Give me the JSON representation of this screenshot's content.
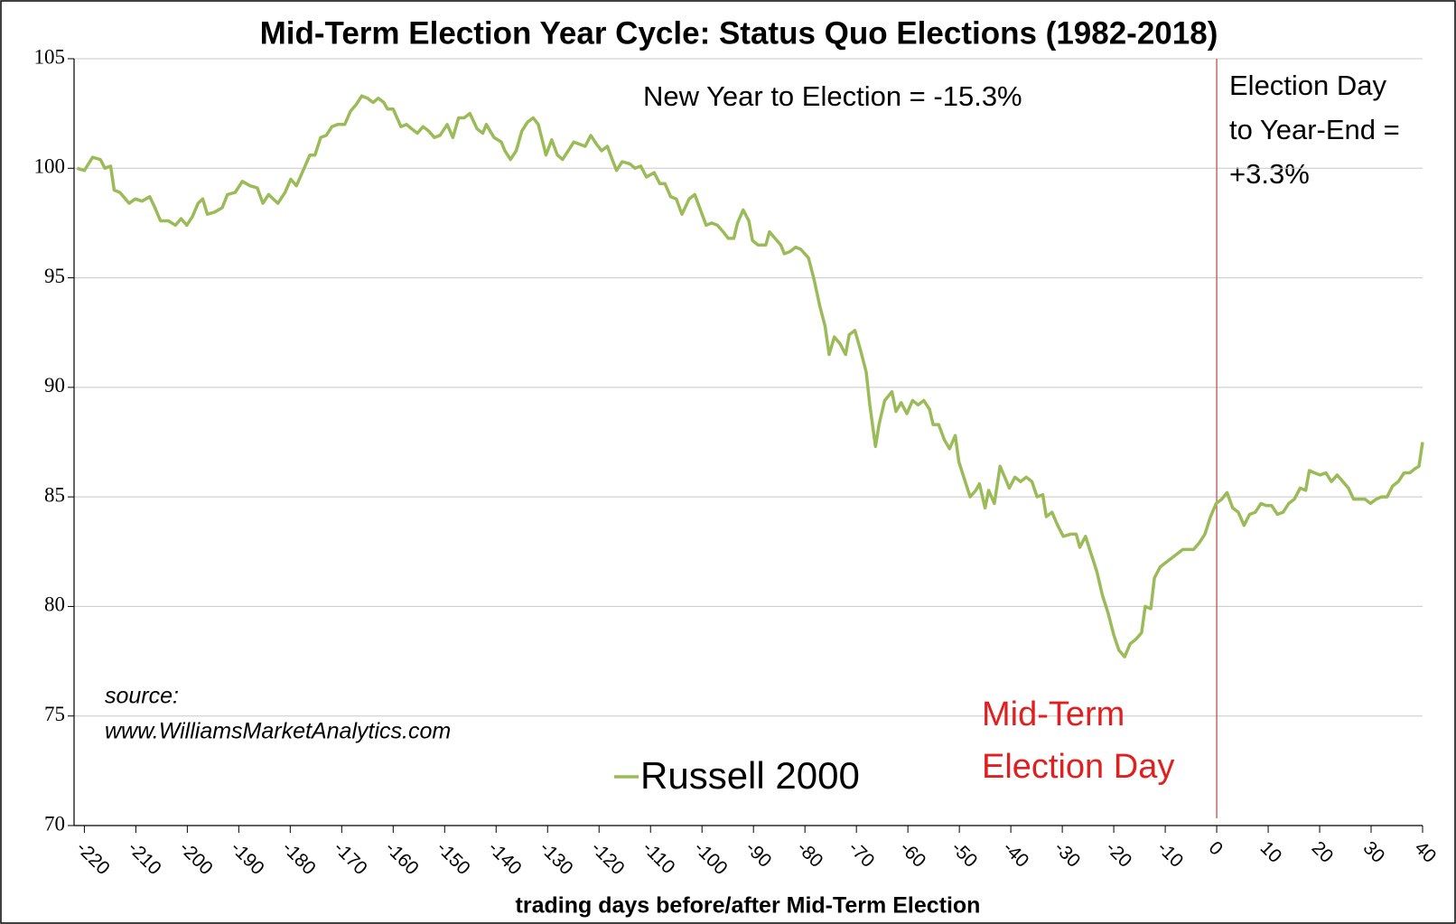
{
  "chart_data": {
    "type": "line",
    "title": "Mid-Term Election Year Cycle: Status Quo Elections (1982-2018)",
    "xlabel": "trading days before/after Mid-Term Election",
    "xlim": [
      -222,
      40
    ],
    "ylim": [
      70,
      105
    ],
    "xticks": [
      -220,
      -210,
      -200,
      -190,
      -180,
      -170,
      -160,
      -150,
      -140,
      -130,
      -120,
      -110,
      -100,
      -90,
      -80,
      -70,
      -60,
      -50,
      -40,
      -30,
      -20,
      -10,
      0,
      10,
      20,
      30,
      40
    ],
    "yticks": [
      70,
      75,
      80,
      85,
      90,
      95,
      100,
      105
    ],
    "grid": true,
    "reference_line": {
      "x": 0,
      "color": "#c0504d"
    },
    "annotations": {
      "new_year": "New Year to Election = -15.3%",
      "election_day": [
        "Election Day",
        "to Year-End =",
        "+3.3%"
      ],
      "source": [
        "source:",
        "www.WilliamsMarketAnalytics.com"
      ],
      "election_day_label": {
        "lines": [
          "Mid-Term",
          "Election Day"
        ],
        "color": "#e02020"
      }
    },
    "x": [
      -221.4,
      -220,
      -218.4,
      -216.9,
      -216.0,
      -214.9,
      -214.2,
      -213.1,
      -211.3,
      -210.1,
      -208.8,
      -207.3,
      -206.3,
      -205.2,
      -203.7,
      -202.3,
      -201.2,
      -200.1,
      -199.0,
      -197.9,
      -197.0,
      -196.1,
      -194.7,
      -193.2,
      -192.2,
      -190.7,
      -189.3,
      -187.8,
      -186.4,
      -185.3,
      -184.2,
      -182.4,
      -181.0,
      -179.9,
      -178.8,
      -177.3,
      -176.2,
      -175.2,
      -174.1,
      -173.0,
      -171.9,
      -170.8,
      -169.4,
      -168.3,
      -167.2,
      -166.1,
      -165.0,
      -163.9,
      -162.9,
      -161.8,
      -161.1,
      -160.0,
      -158.5,
      -157.4,
      -156.4,
      -155.3,
      -154.2,
      -153.1,
      -152.0,
      -150.9,
      -149.5,
      -148.4,
      -147.3,
      -146.2,
      -145.1,
      -143.7,
      -142.6,
      -141.9,
      -140.4,
      -139.0,
      -138.3,
      -137.2,
      -136.1,
      -135.0,
      -133.9,
      -132.8,
      -131.8,
      -130.3,
      -129.2,
      -128.1,
      -127.1,
      -126.0,
      -124.9,
      -123.8,
      -122.7,
      -121.6,
      -120.5,
      -119.5,
      -118.4,
      -117.6,
      -116.6,
      -115.5,
      -114.0,
      -113.0,
      -111.9,
      -110.8,
      -109.3,
      -108.2,
      -107.2,
      -106.1,
      -105.0,
      -103.9,
      -102.5,
      -101.4,
      -100.3,
      -99.2,
      -98.1,
      -97.0,
      -95.9,
      -94.9,
      -93.8,
      -93.1,
      -92.0,
      -90.9,
      -90.2,
      -89.1,
      -87.6,
      -86.9,
      -85.8,
      -84.7,
      -84.0,
      -82.9,
      -81.8,
      -80.8,
      -79.3,
      -78.2,
      -77.1,
      -76.1,
      -75.3,
      -74.3,
      -73.2,
      -72.1,
      -71.4,
      -70.3,
      -69.2,
      -68.1,
      -67.4,
      -66.3,
      -65.6,
      -64.5,
      -63.1,
      -62.3,
      -61.3,
      -60.2,
      -59.1,
      -58.0,
      -56.9,
      -55.8,
      -55.1,
      -54.0,
      -52.9,
      -51.9,
      -50.8,
      -50.1,
      -49.0,
      -47.9,
      -46.8,
      -46.1,
      -45.0,
      -44.3,
      -43.2,
      -42.1,
      -41.0,
      -40.3,
      -39.2,
      -38.1,
      -37.0,
      -35.9,
      -34.9,
      -33.8,
      -33.1,
      -32.0,
      -30.9,
      -29.8,
      -28.4,
      -27.3,
      -26.6,
      -25.5,
      -24.4,
      -23.3,
      -22.2,
      -21.1,
      -20.0,
      -19.0,
      -17.9,
      -16.8,
      -15.7,
      -14.6,
      -13.9,
      -12.8,
      -12.1,
      -11.0,
      -9.9,
      -8.8,
      -7.7,
      -6.6,
      -5.6,
      -4.5,
      -3.4,
      -2.3,
      -1.2,
      -0.1,
      1.0,
      2.0,
      3.1,
      4.2,
      5.3,
      6.4,
      7.5,
      8.6,
      9.6,
      10.7,
      11.8,
      12.9,
      14.0,
      15.1,
      16.2,
      17.3,
      18.0,
      19.0,
      20.1,
      21.2,
      22.3,
      23.4,
      24.5,
      25.6,
      26.6,
      27.7,
      28.8,
      29.9,
      31.0,
      32.0,
      33.1,
      34.2,
      35.3,
      36.4,
      37.5,
      38.6,
      39.3,
      40.0
    ],
    "series": [
      {
        "name": "Russell 2000",
        "color": "#9bbb59",
        "values": [
          100.0,
          99.9,
          100.5,
          100.4,
          100.0,
          100.1,
          99.0,
          98.9,
          98.4,
          98.6,
          98.5,
          98.7,
          98.2,
          97.6,
          97.6,
          97.4,
          97.7,
          97.4,
          97.8,
          98.4,
          98.6,
          97.9,
          98.0,
          98.2,
          98.8,
          98.9,
          99.4,
          99.2,
          99.1,
          98.4,
          98.8,
          98.4,
          98.9,
          99.5,
          99.2,
          100.0,
          100.6,
          100.6,
          101.4,
          101.5,
          101.9,
          102.0,
          102.0,
          102.6,
          102.9,
          103.3,
          103.2,
          103.0,
          103.2,
          103.0,
          102.7,
          102.7,
          101.9,
          102.0,
          101.8,
          101.6,
          101.9,
          101.7,
          101.4,
          101.5,
          102.0,
          101.4,
          102.3,
          102.3,
          102.5,
          101.8,
          101.6,
          102.0,
          101.4,
          101.2,
          100.8,
          100.4,
          100.8,
          101.7,
          102.1,
          102.3,
          102.0,
          100.6,
          101.3,
          100.6,
          100.4,
          100.8,
          101.2,
          101.1,
          101.0,
          101.5,
          101.1,
          100.8,
          101.0,
          100.5,
          99.9,
          100.3,
          100.2,
          100.0,
          100.1,
          99.6,
          99.8,
          99.3,
          99.3,
          98.7,
          98.6,
          97.9,
          98.6,
          98.8,
          98.1,
          97.4,
          97.5,
          97.4,
          97.1,
          96.8,
          96.8,
          97.5,
          98.1,
          97.6,
          96.7,
          96.5,
          96.5,
          97.1,
          96.8,
          96.5,
          96.1,
          96.2,
          96.4,
          96.3,
          95.9,
          94.9,
          93.7,
          92.8,
          91.5,
          92.3,
          92.0,
          91.5,
          92.4,
          92.6,
          91.7,
          90.7,
          89.2,
          87.3,
          88.3,
          89.4,
          89.8,
          88.9,
          89.3,
          88.8,
          89.4,
          89.2,
          89.4,
          89.0,
          88.3,
          88.3,
          87.6,
          87.2,
          87.8,
          86.6,
          85.8,
          85.0,
          85.3,
          85.6,
          84.5,
          85.3,
          84.7,
          86.4,
          85.8,
          85.4,
          85.9,
          85.7,
          85.9,
          85.7,
          85.0,
          85.1,
          84.1,
          84.3,
          83.7,
          83.2,
          83.3,
          83.3,
          82.7,
          83.2,
          82.4,
          81.6,
          80.5,
          79.7,
          78.7,
          78.0,
          77.7,
          78.3,
          78.5,
          78.8,
          80.0,
          79.9,
          81.3,
          81.8,
          82.0,
          82.2,
          82.4,
          82.6,
          82.6,
          82.6,
          82.9,
          83.3,
          84.1,
          84.7,
          84.9,
          85.2,
          84.5,
          84.3,
          83.7,
          84.2,
          84.3,
          84.7,
          84.6,
          84.6,
          84.2,
          84.3,
          84.7,
          84.9,
          85.4,
          85.3,
          86.2,
          86.1,
          86.0,
          86.1,
          85.7,
          86.0,
          85.7,
          85.4,
          84.9,
          84.9,
          84.9,
          84.7,
          84.9,
          85.0,
          85.0,
          85.5,
          85.7,
          86.1,
          86.1,
          86.3,
          86.4,
          87.5
        ]
      }
    ]
  }
}
